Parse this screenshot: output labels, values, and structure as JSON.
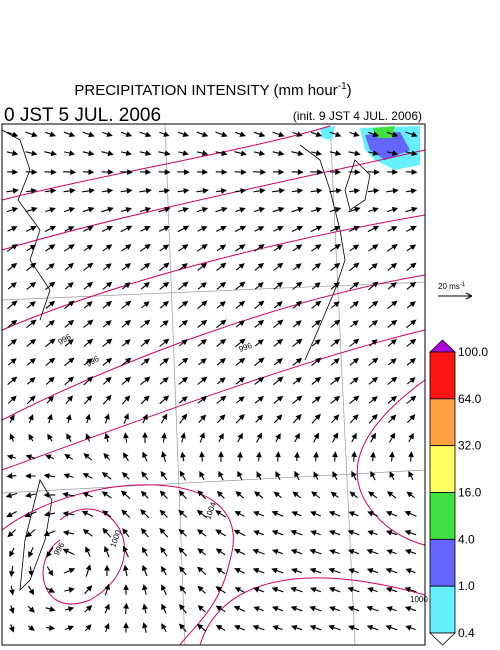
{
  "header": {
    "title_main": "PRECIPITATION INTENSITY (mm hour",
    "title_exp": "-1",
    "title_close": ")",
    "valid_time": "0 JST 5 JUL. 2006",
    "init_time": "(init. 9 JST 4 JUL. 2006)"
  },
  "reference_vector": {
    "label": "20 ms",
    "exp": "-1"
  },
  "colorbar": {
    "levels": [
      "100.0",
      "64.0",
      "32.0",
      "16.0",
      "4.0",
      "1.0",
      "0.4"
    ],
    "colors": [
      "#b000e0",
      "#ff1414",
      "#ffa040",
      "#ffff60",
      "#40e040",
      "#6464ff",
      "#64f0ff",
      "#ffffff"
    ]
  },
  "contour_labels": [
    "996",
    "996",
    "996",
    "1000",
    "1004",
    "1000",
    "996"
  ]
}
